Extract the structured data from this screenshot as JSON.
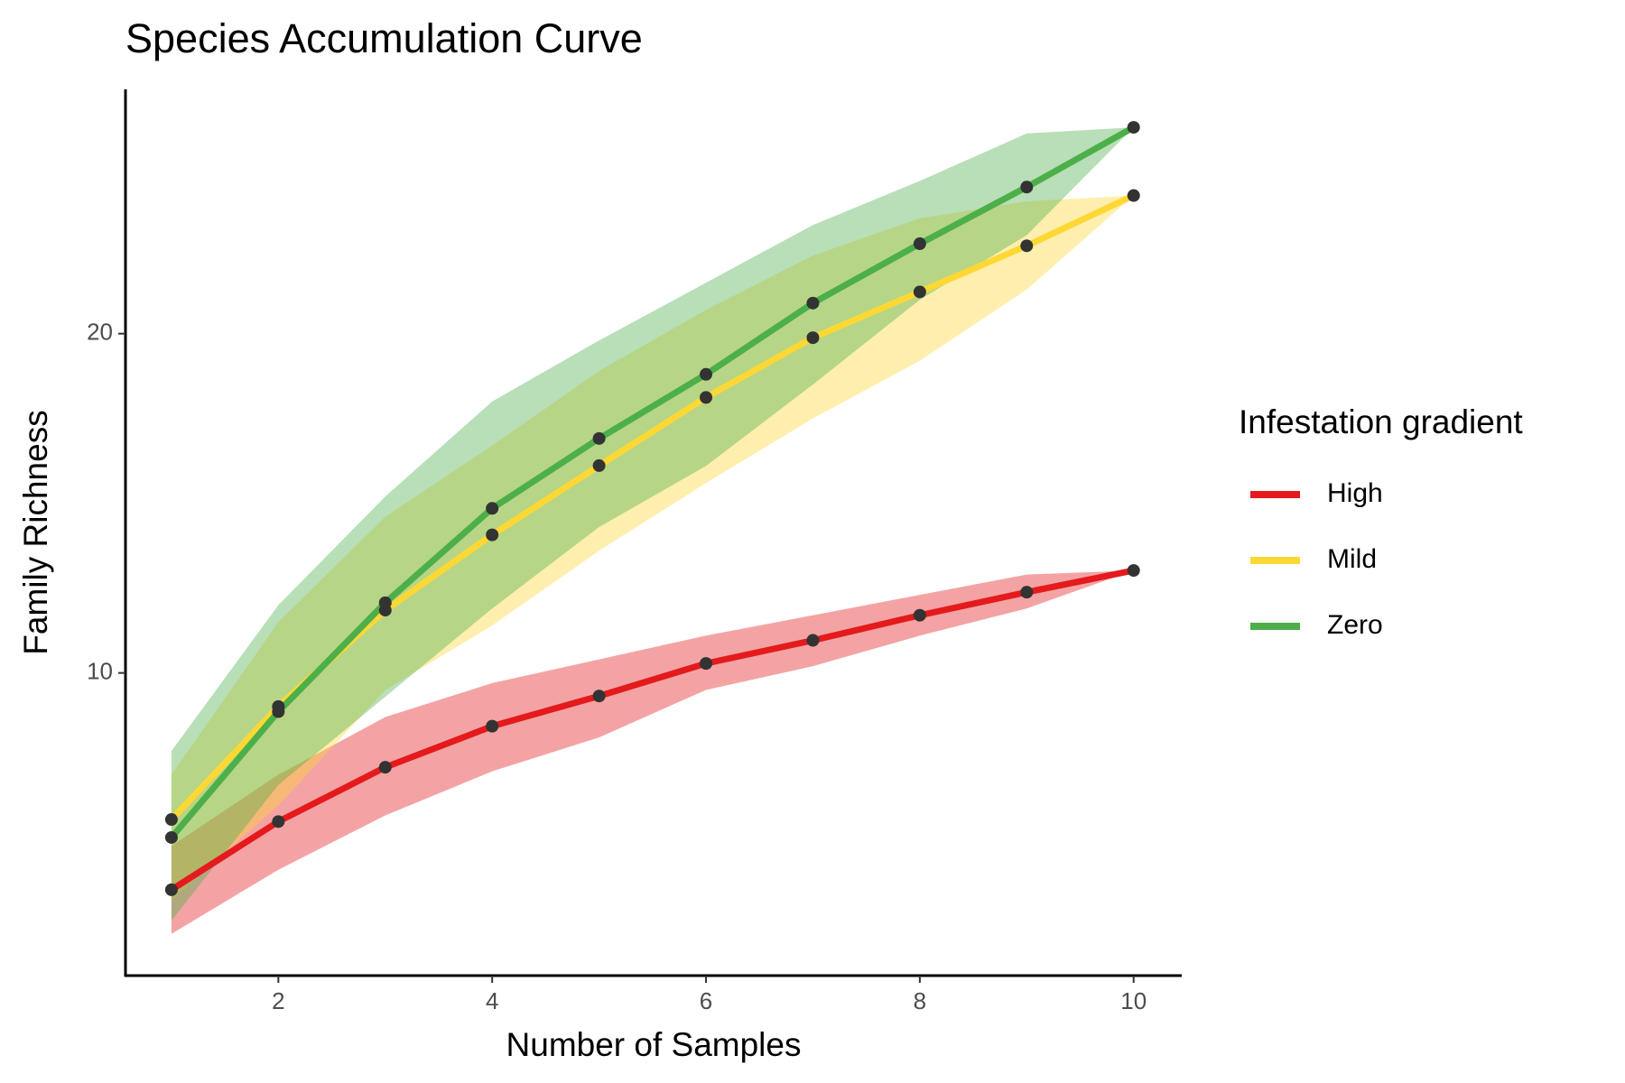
{
  "chart_data": {
    "type": "line",
    "title": "Species Accumulation Curve",
    "x_label": "Number of Samples",
    "y_label": "Family Richness",
    "legend_title": "Infestation gradient",
    "legend_position": "right",
    "grid": false,
    "x": [
      1,
      2,
      3,
      4,
      5,
      6,
      7,
      8,
      9,
      10
    ],
    "xlim": [
      0.57,
      10.45
    ],
    "ylim": [
      1.08,
      27.2
    ],
    "xticks": [
      2,
      4,
      6,
      8,
      10
    ],
    "yticks": [
      10,
      20
    ],
    "point_color": "#333333",
    "series": [
      {
        "name": "High",
        "color": "#e41a1c",
        "values": [
          3.61,
          5.62,
          7.22,
          8.43,
          9.32,
          10.28,
          10.96,
          11.7,
          12.38,
          13.02
        ],
        "lower": [
          2.31,
          4.2,
          5.8,
          7.1,
          8.1,
          9.5,
          10.2,
          11.1,
          11.9,
          13.02
        ],
        "upper": [
          4.9,
          7.0,
          8.7,
          9.7,
          10.4,
          11.1,
          11.7,
          12.3,
          12.9,
          13.02
        ]
      },
      {
        "name": "Mild",
        "color": "#fdd835",
        "values": [
          5.68,
          9.01,
          11.85,
          14.07,
          16.11,
          18.12,
          19.88,
          21.23,
          22.59,
          24.07
        ],
        "lower": [
          3.3,
          6.1,
          9.5,
          11.4,
          13.6,
          15.6,
          17.5,
          19.2,
          21.3,
          24.07
        ],
        "upper": [
          7.0,
          11.5,
          14.6,
          16.7,
          18.9,
          20.7,
          22.3,
          23.4,
          23.9,
          24.07
        ]
      },
      {
        "name": "Zero",
        "color": "#4daf4a",
        "values": [
          5.15,
          8.86,
          12.07,
          14.85,
          16.91,
          18.8,
          20.9,
          22.65,
          24.32,
          26.08
        ],
        "lower": [
          2.7,
          6.7,
          9.3,
          11.9,
          14.3,
          16.1,
          18.5,
          21.0,
          22.9,
          26.08
        ],
        "upper": [
          7.7,
          12.0,
          15.2,
          18.0,
          19.8,
          21.5,
          23.2,
          24.5,
          25.9,
          26.08
        ]
      }
    ]
  }
}
